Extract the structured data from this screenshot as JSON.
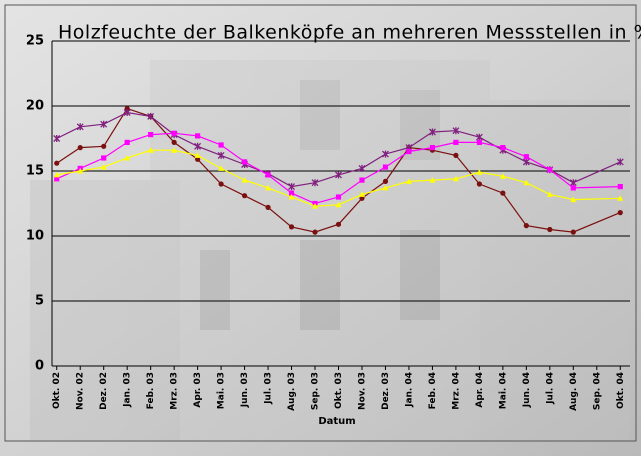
{
  "chart_data": {
    "type": "line",
    "title": "Holzfeuchte der Balkenköpfe an mehreren Messstellen in %",
    "x_label": "Datum",
    "categories": [
      "Okt. 02",
      "Nov. 02",
      "Dez. 02",
      "Jan. 03",
      "Feb. 03",
      "Mrz. 03",
      "Apr. 03",
      "Mai. 03",
      "Jun. 03",
      "Jul. 03",
      "Aug. 03",
      "Sep. 03",
      "Okt. 03",
      "Nov. 03",
      "Dez. 03",
      "Jan. 04",
      "Feb. 04",
      "Mrz. 04",
      "Apr. 04",
      "Mai. 04",
      "Jun. 04",
      "Jul. 04",
      "Aug. 04",
      "Sep. 04",
      "Okt. 04"
    ],
    "ylim": [
      0,
      25
    ],
    "yticks": [
      0,
      5,
      10,
      15,
      20,
      25
    ],
    "grid": true,
    "series": [
      {
        "color": "#7a1010",
        "marker": "circle",
        "x": [
          "Okt. 02",
          "Nov. 02",
          "Dez. 02",
          "Jan. 03",
          "Feb. 03",
          "Mrz. 03",
          "Apr. 03",
          "Mai. 03",
          "Jun. 03",
          "Jul. 03",
          "Aug. 03",
          "Sep. 03",
          "Okt. 03",
          "Nov. 03",
          "Dez. 03",
          "Jan. 04",
          "Feb. 04",
          "Mrz. 04",
          "Apr. 04",
          "Mai. 04",
          "Jun. 04",
          "Jul. 04",
          "Aug. 04",
          "Okt. 04"
        ],
        "values": [
          15.6,
          16.8,
          16.9,
          19.8,
          19.2,
          17.2,
          15.9,
          14.0,
          13.1,
          12.2,
          10.7,
          10.3,
          10.9,
          12.9,
          14.2,
          16.8,
          16.6,
          16.2,
          14.0,
          13.3,
          10.8,
          10.5,
          10.3,
          11.8
        ]
      },
      {
        "color": "#80207f",
        "marker": "cross",
        "x": [
          "Okt. 02",
          "Nov. 02",
          "Dez. 02",
          "Jan. 03",
          "Feb. 03",
          "Mrz. 03",
          "Apr. 03",
          "Mai. 03",
          "Jun. 03",
          "Jul. 03",
          "Aug. 03",
          "Sep. 03",
          "Okt. 03",
          "Nov. 03",
          "Dez. 03",
          "Jan. 04",
          "Feb. 04",
          "Mrz. 04",
          "Apr. 04",
          "Mai. 04",
          "Jun. 04",
          "Jul. 04",
          "Aug. 04",
          "Okt. 04"
        ],
        "values": [
          17.5,
          18.4,
          18.6,
          19.5,
          19.2,
          17.8,
          16.9,
          16.2,
          15.5,
          14.8,
          13.8,
          14.1,
          14.7,
          15.2,
          16.3,
          16.8,
          18.0,
          18.1,
          17.6,
          16.6,
          15.7,
          15.1,
          14.1,
          15.7
        ]
      },
      {
        "color": "#ff00ff",
        "marker": "square",
        "x": [
          "Okt. 02",
          "Nov. 02",
          "Dez. 02",
          "Jan. 03",
          "Feb. 03",
          "Mrz. 03",
          "Apr. 03",
          "Mai. 03",
          "Jun. 03",
          "Jul. 03",
          "Aug. 03",
          "Sep. 03",
          "Okt. 03",
          "Nov. 03",
          "Dez. 03",
          "Jan. 04",
          "Feb. 04",
          "Mrz. 04",
          "Apr. 04",
          "Mai. 04",
          "Jun. 04",
          "Jul. 04",
          "Aug. 04",
          "Okt. 04"
        ],
        "values": [
          14.4,
          15.2,
          16.0,
          17.2,
          17.8,
          17.9,
          17.7,
          17.0,
          15.7,
          14.7,
          13.3,
          12.5,
          13.0,
          14.3,
          15.3,
          16.5,
          16.8,
          17.2,
          17.2,
          16.8,
          16.1,
          15.1,
          13.7,
          13.8
        ]
      },
      {
        "color": "#ffff00",
        "marker": "triangle",
        "x": [
          "Okt. 02",
          "Nov. 02",
          "Dez. 02",
          "Jan. 03",
          "Feb. 03",
          "Mrz. 03",
          "Apr. 03",
          "Mai. 03",
          "Jun. 03",
          "Jul. 03",
          "Aug. 03",
          "Sep. 03",
          "Okt. 03",
          "Nov. 03",
          "Dez. 03",
          "Jan. 04",
          "Feb. 04",
          "Mrz. 04",
          "Apr. 04",
          "Mai. 04",
          "Jun. 04",
          "Jul. 04",
          "Aug. 04",
          "Okt. 04"
        ],
        "values": [
          14.7,
          15.0,
          15.3,
          16.0,
          16.6,
          16.6,
          16.2,
          15.2,
          14.3,
          13.7,
          13.0,
          12.3,
          12.4,
          13.2,
          13.7,
          14.2,
          14.3,
          14.4,
          14.9,
          14.6,
          14.1,
          13.2,
          12.8,
          12.9
        ]
      }
    ]
  }
}
